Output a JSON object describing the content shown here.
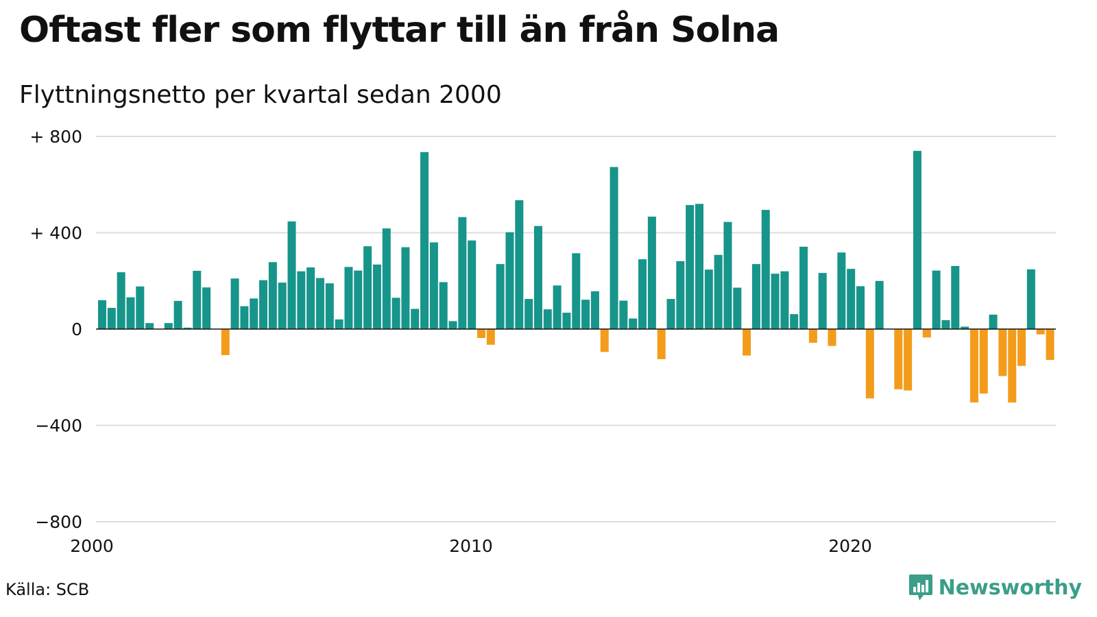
{
  "title": "Oftast fler som flyttar till än från Solna",
  "subtitle": "Flyttningsnetto per kvartal sedan 2000",
  "source": "Källa: SCB",
  "brand": {
    "name": "Newsworthy",
    "icon": "newsworthy-logo-icon"
  },
  "colors": {
    "positive": "#17958a",
    "negative": "#f39c1b",
    "grid": "#dddddd",
    "brand": "#3a9e88"
  },
  "chart_data": {
    "type": "bar",
    "title": "Oftast fler som flyttar till än från Solna",
    "subtitle": "Flyttningsnetto per kvartal sedan 2000",
    "xlabel": "",
    "ylabel": "",
    "ylim": [
      -800,
      800
    ],
    "yticks": [
      800,
      400,
      0,
      -400,
      -800
    ],
    "ytick_labels": [
      "+ 800",
      "+ 400",
      "0",
      "−400",
      "−800"
    ],
    "xticks": [
      2000,
      2010,
      2020
    ],
    "grid": true,
    "start": "2000 Q1",
    "values": [
      120,
      88,
      236,
      132,
      177,
      25,
      0,
      25,
      117,
      6,
      242,
      173,
      0,
      -108,
      210,
      95,
      127,
      203,
      278,
      193,
      447,
      240,
      256,
      212,
      190,
      40,
      258,
      243,
      344,
      268,
      418,
      130,
      340,
      84,
      735,
      360,
      195,
      33,
      465,
      368,
      -37,
      -65,
      270,
      402,
      535,
      125,
      428,
      82,
      181,
      68,
      315,
      122,
      157,
      -95,
      673,
      118,
      44,
      290,
      467,
      -125,
      125,
      282,
      515,
      520,
      247,
      308,
      445,
      172,
      -110,
      270,
      495,
      230,
      240,
      62,
      342,
      -57,
      233,
      -70,
      318,
      250,
      178,
      -288,
      200,
      0,
      -250,
      -255,
      740,
      -35,
      243,
      37,
      262,
      10,
      -305,
      -268,
      60,
      -195,
      -305,
      -153,
      248,
      -22,
      -128
    ]
  }
}
